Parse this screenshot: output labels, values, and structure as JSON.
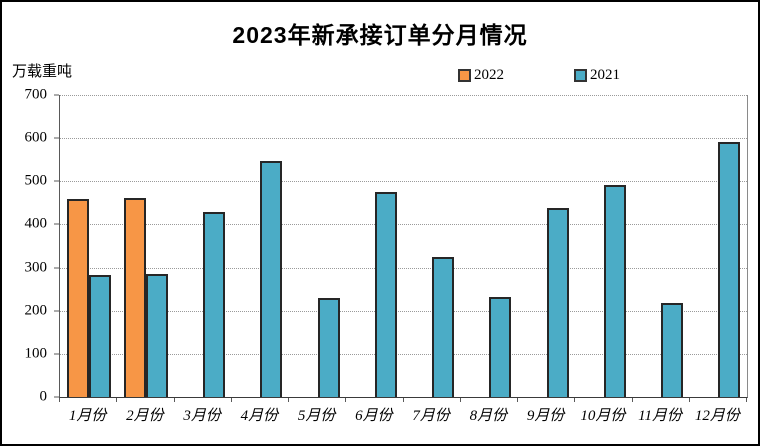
{
  "title": "2023年新承接订单分月情况",
  "y_axis_unit": "万载重吨",
  "legend": {
    "items": [
      {
        "label": "2022",
        "color": "#F79646"
      },
      {
        "label": "2021",
        "color": "#4BACC6"
      }
    ]
  },
  "colors": {
    "series_2022": "#F79646",
    "series_2021": "#4BACC6",
    "bar_border": "#262626",
    "gridline": "#9a9a9a",
    "axis": "#595959",
    "background": "#ffffff",
    "frame_border": "#000000"
  },
  "chart_data": {
    "type": "bar",
    "title": "2023年新承接订单分月情况",
    "ylabel": "万载重吨",
    "xlabel": "",
    "ylim": [
      0,
      700
    ],
    "yticks": [
      0,
      100,
      200,
      300,
      400,
      500,
      600,
      700
    ],
    "grid": "horizontal-dotted",
    "legend_position": "top-center",
    "categories": [
      "1月份",
      "2月份",
      "3月份",
      "4月份",
      "5月份",
      "6月份",
      "7月份",
      "8月份",
      "9月份",
      "10月份",
      "11月份",
      "12月份"
    ],
    "series": [
      {
        "name": "2022",
        "color": "#F79646",
        "values": [
          460,
          462,
          null,
          null,
          null,
          null,
          null,
          null,
          null,
          null,
          null,
          null
        ]
      },
      {
        "name": "2021",
        "color": "#4BACC6",
        "values": [
          282,
          284,
          428,
          547,
          230,
          475,
          325,
          232,
          439,
          492,
          219,
          590
        ]
      }
    ]
  }
}
